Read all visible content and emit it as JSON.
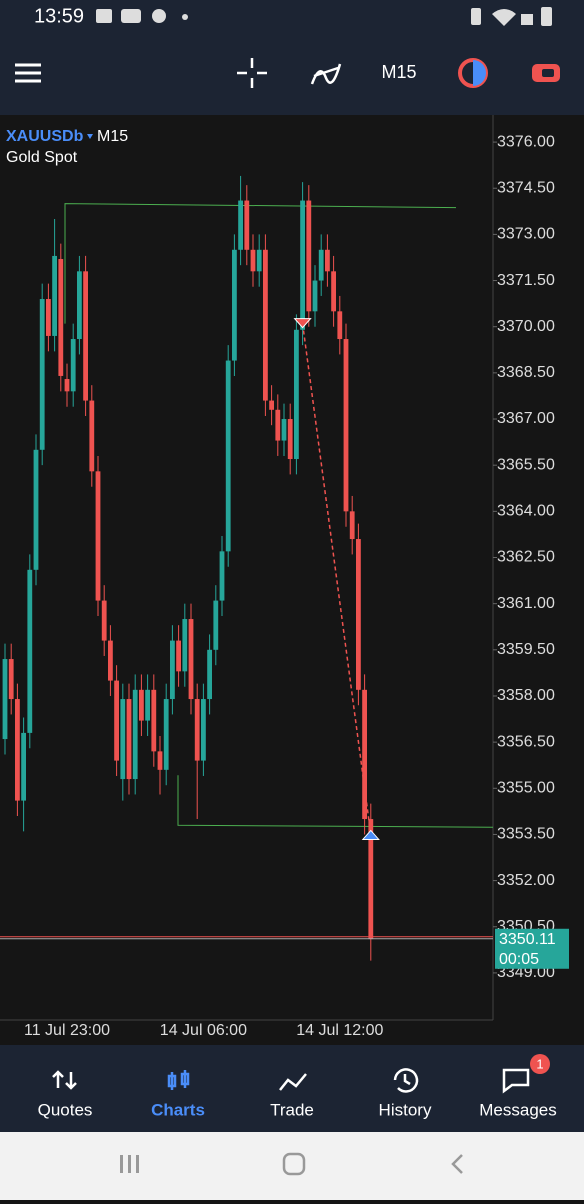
{
  "status_bar": {
    "time": "13:59"
  },
  "toolbar": {
    "timeframe": "M15"
  },
  "chart_data": {
    "type": "candlestick",
    "symbol": "XAUUSDb",
    "timeframe": "M15",
    "description": "Gold Spot",
    "categories": [
      null,
      null,
      null,
      null,
      null,
      null,
      null,
      null,
      null,
      null,
      "11 Jul 23:00",
      null,
      null,
      null,
      null,
      null,
      null,
      null,
      null,
      null,
      null,
      null,
      null,
      null,
      null,
      null,
      null,
      null,
      null,
      null,
      null,
      null,
      "14 Jul 06:00",
      null,
      null,
      null,
      null,
      null,
      null,
      null,
      null,
      null,
      null,
      null,
      null,
      null,
      null,
      null,
      null,
      null,
      null,
      null,
      null,
      null,
      "14 Jul 12:00",
      null,
      null,
      null,
      null,
      null
    ],
    "series": [
      {
        "name": "open",
        "values": [
          3356.6,
          3359.2,
          3357.9,
          3354.6,
          3356.8,
          3362.1,
          3366.0,
          3370.9,
          3369.7,
          3372.2,
          3368.3,
          3367.9,
          3369.6,
          3371.8,
          3367.6,
          3365.3,
          3361.1,
          3359.8,
          3358.5,
          3355.3,
          3357.9,
          3355.3,
          3358.2,
          3357.2,
          3358.2,
          3356.2,
          3355.6,
          3357.9,
          3359.8,
          3358.8,
          3360.5,
          3357.9,
          3355.9,
          3357.9,
          3359.5,
          3361.1,
          3362.7,
          3368.9,
          3372.5,
          3374.1,
          3372.5,
          3371.8,
          3372.5,
          3367.6,
          3367.3,
          3366.3,
          3367.0,
          3365.7,
          3369.9,
          3374.1,
          3370.5,
          3371.5,
          3372.5,
          3371.8,
          3370.5,
          3369.6,
          3364.0,
          3363.1,
          3358.2,
          3354.0
        ]
      },
      {
        "name": "high",
        "values": [
          3359.7,
          3359.7,
          3358.4,
          3357.3,
          3362.6,
          3366.5,
          3371.4,
          3371.4,
          3373.5,
          3372.7,
          3368.8,
          3370.1,
          3372.3,
          3372.3,
          3368.1,
          3365.8,
          3361.6,
          3360.3,
          3359.0,
          3358.4,
          3358.4,
          3358.7,
          3358.7,
          3358.7,
          3358.7,
          3356.7,
          3358.4,
          3360.3,
          3360.3,
          3361.0,
          3361.0,
          3358.4,
          3358.4,
          3360.0,
          3361.6,
          3363.2,
          3369.4,
          3373.0,
          3374.9,
          3374.6,
          3373.0,
          3373.0,
          3373.0,
          3368.1,
          3367.8,
          3367.5,
          3367.5,
          3370.4,
          3374.7,
          3374.6,
          3372.0,
          3373.0,
          3373.0,
          3372.3,
          3371.0,
          3370.1,
          3364.5,
          3363.6,
          3358.7,
          3354.5
        ]
      },
      {
        "name": "low",
        "values": [
          3356.1,
          3357.4,
          3354.1,
          3353.6,
          3356.3,
          3361.6,
          3365.5,
          3369.2,
          3369.2,
          3367.9,
          3367.4,
          3367.4,
          3369.1,
          3367.1,
          3364.8,
          3360.6,
          3359.3,
          3358.0,
          3355.4,
          3354.6,
          3354.8,
          3354.8,
          3356.7,
          3356.7,
          3355.7,
          3354.8,
          3355.1,
          3357.4,
          3358.3,
          3358.3,
          3357.4,
          3354.0,
          3355.4,
          3357.4,
          3359.0,
          3360.6,
          3362.2,
          3368.4,
          3372.0,
          3372.0,
          3371.3,
          3371.3,
          3367.1,
          3366.8,
          3365.8,
          3365.8,
          3365.2,
          3365.2,
          3369.4,
          3370.0,
          3370.0,
          3371.0,
          3371.3,
          3370.0,
          3369.1,
          3363.5,
          3362.6,
          3357.7,
          3353.5,
          3349.4
        ]
      },
      {
        "name": "close",
        "values": [
          3359.2,
          3357.9,
          3354.6,
          3356.8,
          3362.1,
          3366.0,
          3370.9,
          3369.7,
          3372.3,
          3368.4,
          3367.9,
          3369.6,
          3371.8,
          3367.6,
          3365.3,
          3361.1,
          3359.8,
          3358.5,
          3355.9,
          3357.9,
          3355.3,
          3358.2,
          3357.2,
          3358.2,
          3356.2,
          3355.6,
          3357.9,
          3359.8,
          3358.8,
          3360.5,
          3357.9,
          3355.9,
          3357.9,
          3359.5,
          3361.1,
          3362.7,
          3368.9,
          3372.5,
          3374.1,
          3372.5,
          3371.8,
          3372.5,
          3367.6,
          3367.3,
          3366.3,
          3367.0,
          3365.7,
          3369.9,
          3374.1,
          3370.5,
          3371.5,
          3372.5,
          3371.8,
          3370.5,
          3369.6,
          3364.0,
          3363.1,
          3358.2,
          3354.0,
          3350.1
        ]
      }
    ],
    "up_color": "#26a69a",
    "down_color": "#ef5350",
    "ylim": [
      3347.47,
      3376.88
    ],
    "yticks": [
      {
        "value": 3376.0,
        "label": "3376.00"
      },
      {
        "value": 3374.5,
        "label": "3374.50"
      },
      {
        "value": 3373.0,
        "label": "3373.00"
      },
      {
        "value": 3371.5,
        "label": "3371.50"
      },
      {
        "value": 3370.0,
        "label": "3370.00"
      },
      {
        "value": 3368.5,
        "label": "3368.50"
      },
      {
        "value": 3367.0,
        "label": "3367.00"
      },
      {
        "value": 3365.5,
        "label": "3365.50"
      },
      {
        "value": 3364.0,
        "label": "3364.00"
      },
      {
        "value": 3362.5,
        "label": "3362.50"
      },
      {
        "value": 3361.0,
        "label": "3361.00"
      },
      {
        "value": 3359.5,
        "label": "3359.50"
      },
      {
        "value": 3358.0,
        "label": "3358.00"
      },
      {
        "value": 3356.5,
        "label": "3356.50"
      },
      {
        "value": 3355.0,
        "label": "3355.00"
      },
      {
        "value": 3353.5,
        "label": "3353.50"
      },
      {
        "value": 3352.0,
        "label": "3352.00"
      },
      {
        "value": 3350.5,
        "label": "3350.50"
      },
      {
        "value": 3349.0,
        "label": "3349.00"
      }
    ],
    "levels": [
      3374.0,
      3353.8
    ],
    "trade": {
      "open": 3370.1,
      "close": 3353.5
    },
    "current_price": {
      "value": 3350.11,
      "label": "3350.11"
    },
    "countdown": "00:05"
  },
  "nav": {
    "items": [
      "Quotes",
      "Charts",
      "Trade",
      "History",
      "Messages"
    ],
    "badge": 1
  }
}
